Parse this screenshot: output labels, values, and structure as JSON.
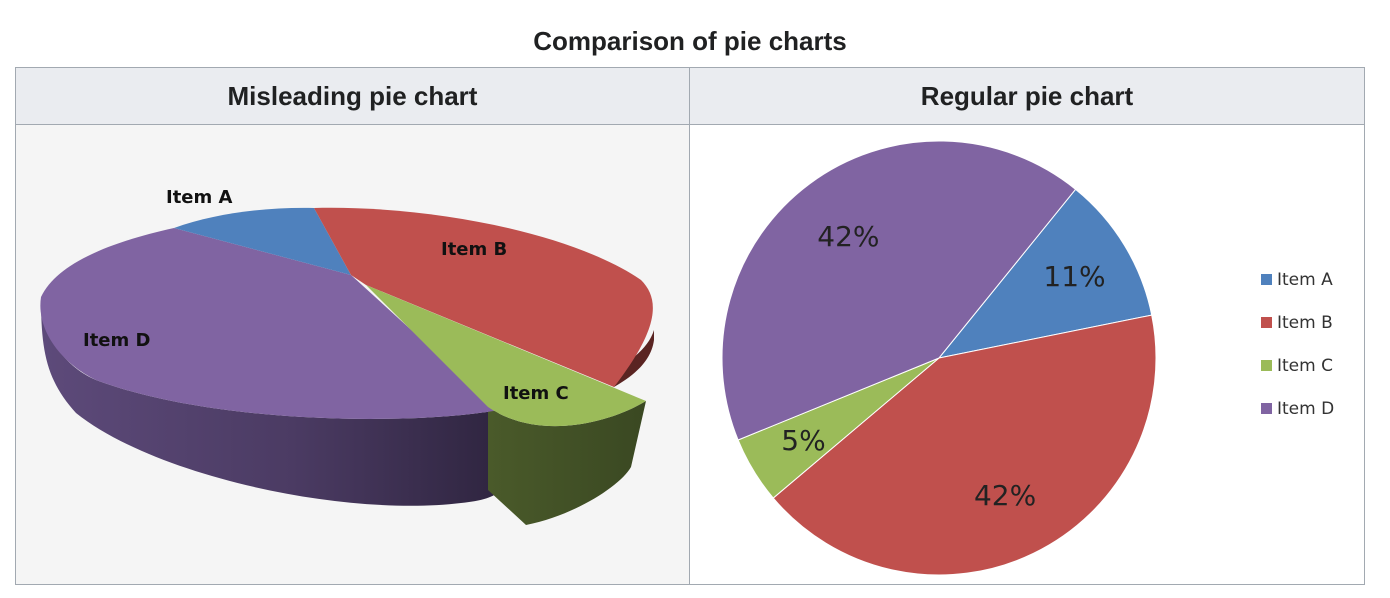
{
  "title": "Comparison of pie charts",
  "headers": {
    "left": "Misleading pie chart",
    "right": "Regular pie chart"
  },
  "colors": {
    "item_a": "#4f81bd",
    "item_b": "#c0504d",
    "item_c": "#9bbb59",
    "item_d": "#8064a2"
  },
  "chart_data": [
    {
      "type": "pie",
      "variant": "3d-exploded",
      "categories": [
        "Item A",
        "Item B",
        "Item C",
        "Item D"
      ],
      "values": [
        11,
        42,
        5,
        42
      ],
      "data_labels": [
        "Item A",
        "Item B",
        "Item C",
        "Item D"
      ],
      "legend": false
    },
    {
      "type": "pie",
      "variant": "2d",
      "categories": [
        "Item A",
        "Item B",
        "Item C",
        "Item D"
      ],
      "values": [
        11,
        42,
        5,
        42
      ],
      "data_labels": [
        "11%",
        "42%",
        "5%",
        "42%"
      ],
      "legend": "right"
    }
  ]
}
